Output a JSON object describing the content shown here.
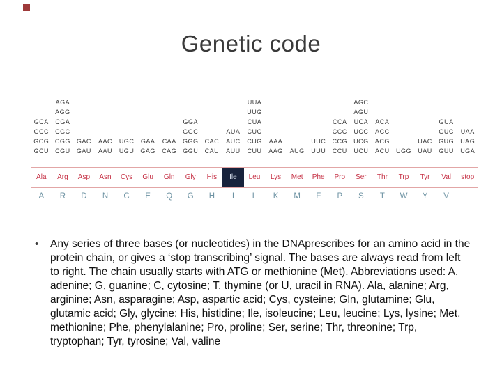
{
  "slide": {
    "title": "Genetic code"
  },
  "genetic_table": {
    "columns": [
      {
        "codons": [
          "GCA",
          "GCC",
          "GCG",
          "GCU"
        ],
        "abbr": "Ala",
        "letter": "A",
        "highlighted": false
      },
      {
        "codons": [
          "AGA",
          "AGG",
          "CGA",
          "CGC",
          "CGG",
          "CGU"
        ],
        "abbr": "Arg",
        "letter": "R",
        "highlighted": false
      },
      {
        "codons": [
          "GAC",
          "GAU"
        ],
        "abbr": "Asp",
        "letter": "D",
        "highlighted": false
      },
      {
        "codons": [
          "AAC",
          "AAU"
        ],
        "abbr": "Asn",
        "letter": "N",
        "highlighted": false
      },
      {
        "codons": [
          "UGC",
          "UGU"
        ],
        "abbr": "Cys",
        "letter": "C",
        "highlighted": false
      },
      {
        "codons": [
          "GAA",
          "GAG"
        ],
        "abbr": "Glu",
        "letter": "E",
        "highlighted": false
      },
      {
        "codons": [
          "CAA",
          "CAG"
        ],
        "abbr": "Gln",
        "letter": "Q",
        "highlighted": false
      },
      {
        "codons": [
          "GGA",
          "GGC",
          "GGG",
          "GGU"
        ],
        "abbr": "Gly",
        "letter": "G",
        "highlighted": false
      },
      {
        "codons": [
          "CAC",
          "CAU"
        ],
        "abbr": "His",
        "letter": "H",
        "highlighted": false
      },
      {
        "codons": [
          "AUA",
          "AUC",
          "AUU"
        ],
        "abbr": "Ile",
        "letter": "I",
        "highlighted": true
      },
      {
        "codons": [
          "UUA",
          "UUG",
          "CUA",
          "CUC",
          "CUG",
          "CUU"
        ],
        "abbr": "Leu",
        "letter": "L",
        "highlighted": false
      },
      {
        "codons": [
          "AAA",
          "AAG"
        ],
        "abbr": "Lys",
        "letter": "K",
        "highlighted": false
      },
      {
        "codons": [
          "AUG"
        ],
        "abbr": "Met",
        "letter": "M",
        "highlighted": false
      },
      {
        "codons": [
          "UUC",
          "UUU"
        ],
        "abbr": "Phe",
        "letter": "F",
        "highlighted": false
      },
      {
        "codons": [
          "CCA",
          "CCC",
          "CCG",
          "CCU"
        ],
        "abbr": "Pro",
        "letter": "P",
        "highlighted": false
      },
      {
        "codons": [
          "AGC",
          "AGU",
          "UCA",
          "UCC",
          "UCG",
          "UCU"
        ],
        "abbr": "Ser",
        "letter": "S",
        "highlighted": false
      },
      {
        "codons": [
          "ACA",
          "ACC",
          "ACG",
          "ACU"
        ],
        "abbr": "Thr",
        "letter": "T",
        "highlighted": false
      },
      {
        "codons": [
          "UGG"
        ],
        "abbr": "Trp",
        "letter": "W",
        "highlighted": false
      },
      {
        "codons": [
          "UAC",
          "UAU"
        ],
        "abbr": "Tyr",
        "letter": "Y",
        "highlighted": false
      },
      {
        "codons": [
          "GUA",
          "GUC",
          "GUG",
          "GUU"
        ],
        "abbr": "Val",
        "letter": "V",
        "highlighted": false
      },
      {
        "codons": [
          "UAA",
          "UAG",
          "UGA"
        ],
        "abbr": "stop",
        "letter": "",
        "highlighted": false
      }
    ]
  },
  "body": {
    "bullet_char": "•",
    "text": "Any series of three bases (or nucleotides) in the DNAprescribes for an amino acid in the protein chain, or gives a ‘stop transcribing’ signal. The bases are always read from left to right. The chain usually starts with ATG or methionine (Met). Abbreviations used: A, adenine; G, guanine; C, cytosine; T, thymine (or U, uracil in RNA). Ala, alanine; Arg, arginine; Asn, asparagine; Asp, aspartic acid; Cys, cysteine; Gln, glutamine; Glu, glutamic acid; Gly, glycine; His, histidine; Ile, isoleucine; Leu, leucine; Lys, lysine; Met, methionine; Phe, phenylalanine; Pro, proline; Ser, serine; Thr, threonine; Trp, tryptophan; Tyr, tyrosine; Val, valine"
  },
  "colors": {
    "abbr_red": "#c63246",
    "letter_blue": "#6e93a3",
    "rule_pink": "#e2a6a6",
    "codon_gray": "#3d3d3d",
    "title_gray": "#3a3a3a",
    "corner_square_red": "#9e3a3a",
    "highlight_dark": "#18233c",
    "background": "#ffffff"
  }
}
